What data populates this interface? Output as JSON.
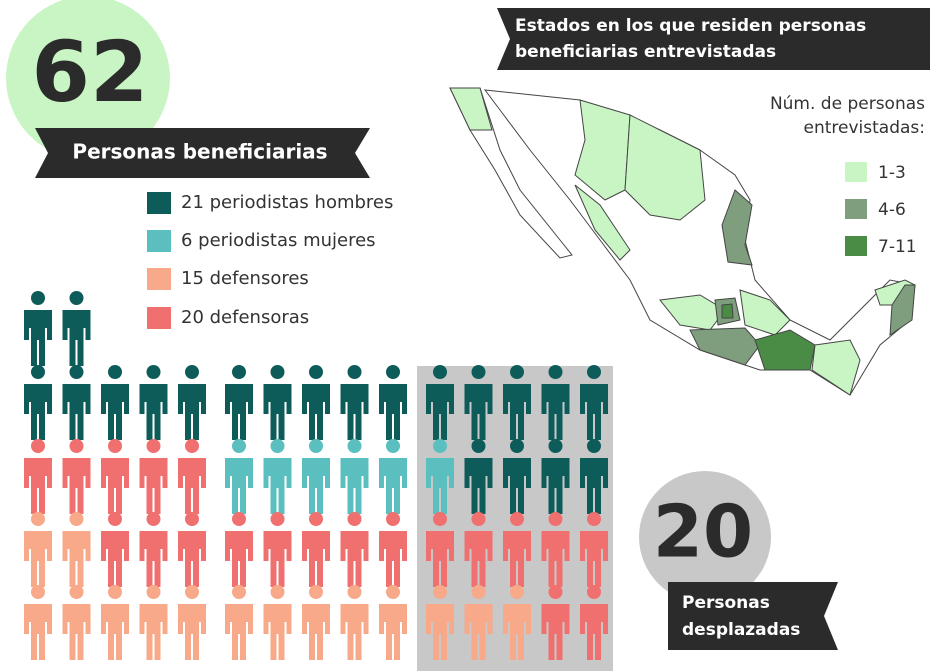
{
  "header": {
    "number": "62",
    "label": "Personas beneficiarias"
  },
  "legend": [
    "21 periodistas hombres",
    "6 periodistas mujeres",
    "15 defensores",
    "20 defensoras"
  ],
  "map": {
    "title_lines": [
      "Estados en los que residen personas",
      "beneficiarias entrevistadas"
    ],
    "legend_title_lines": [
      "Núm. de personas",
      "entrevistadas:"
    ],
    "legend": [
      "1-3",
      "4-6",
      "7-11"
    ]
  },
  "displaced": {
    "number": "20",
    "label_lines": [
      "Personas",
      "desplazadas"
    ]
  }
}
